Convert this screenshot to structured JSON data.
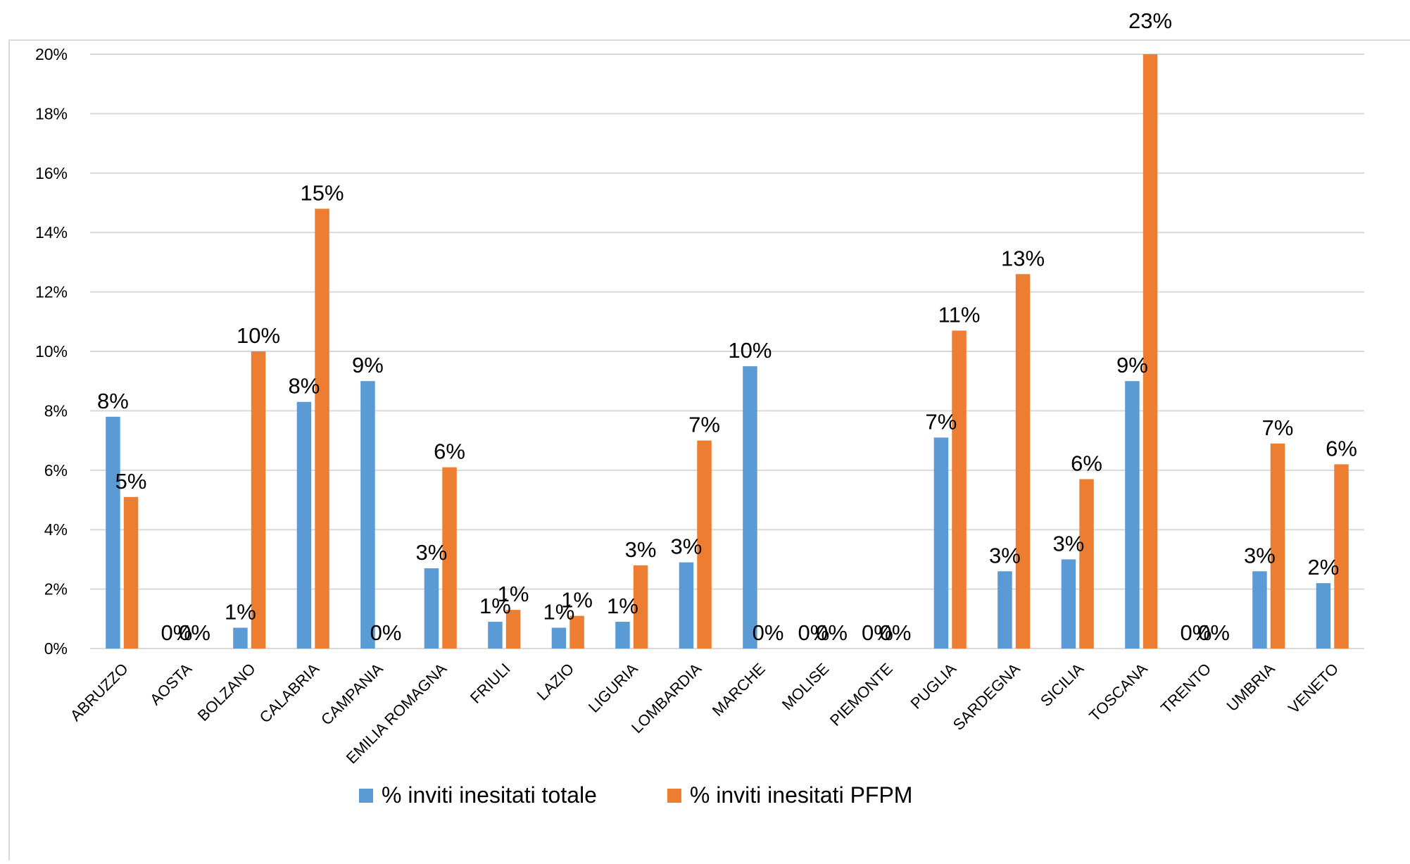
{
  "chart_data": {
    "type": "bar",
    "categories": [
      "ABRUZZO",
      "AOSTA",
      "BOLZANO",
      "CALABRIA",
      "CAMPANIA",
      "EMILIA ROMAGNA",
      "FRIULI",
      "LAZIO",
      "LIGURIA",
      "LOMBARDIA",
      "MARCHE",
      "MOLISE",
      "PIEMONTE",
      "PUGLIA",
      "SARDEGNA",
      "SICILIA",
      "TOSCANA",
      "TRENTO",
      "UMBRIA",
      "VENETO"
    ],
    "series": [
      {
        "name": "% inviti inesitati totale",
        "color": "#5b9bd5",
        "values": [
          7.8,
          0,
          0.7,
          8.3,
          9.0,
          2.7,
          0.9,
          0.7,
          0.9,
          2.9,
          9.5,
          0,
          0,
          7.1,
          2.6,
          3.0,
          9.0,
          0,
          2.6,
          2.2
        ],
        "value_labels": [
          "8%",
          "0%",
          "1%",
          "8%",
          "9%",
          "3%",
          "1%",
          "1%",
          "1%",
          "3%",
          "10%",
          "0%",
          "0%",
          "7%",
          "3%",
          "3%",
          "9%",
          "0%",
          "3%",
          "2%"
        ]
      },
      {
        "name": "% inviti inesitati PFPM",
        "color": "#ed7d31",
        "values": [
          5.1,
          0,
          10.0,
          14.8,
          0,
          6.1,
          1.3,
          1.1,
          2.8,
          7.0,
          0,
          0,
          0,
          10.7,
          12.6,
          5.7,
          23,
          0,
          6.9,
          6.2
        ],
        "value_labels": [
          "5%",
          "0%",
          "10%",
          "15%",
          "0%",
          "6%",
          "1%",
          "1%",
          "3%",
          "7%",
          "0%",
          "0%",
          "0%",
          "11%",
          "13%",
          "6%",
          "23%",
          "0%",
          "7%",
          "6%"
        ]
      }
    ],
    "ylim": [
      0,
      20
    ],
    "yticks": [
      {
        "value": 0,
        "label": "0%"
      },
      {
        "value": 2,
        "label": "2%"
      },
      {
        "value": 4,
        "label": "4%"
      },
      {
        "value": 6,
        "label": "6%"
      },
      {
        "value": 8,
        "label": "8%"
      },
      {
        "value": 10,
        "label": "10%"
      },
      {
        "value": 12,
        "label": "12%"
      },
      {
        "value": 14,
        "label": "14%"
      },
      {
        "value": 16,
        "label": "16%"
      },
      {
        "value": 18,
        "label": "18%"
      },
      {
        "value": 20,
        "label": "20%"
      }
    ],
    "grid": true,
    "legend": "bottom"
  }
}
